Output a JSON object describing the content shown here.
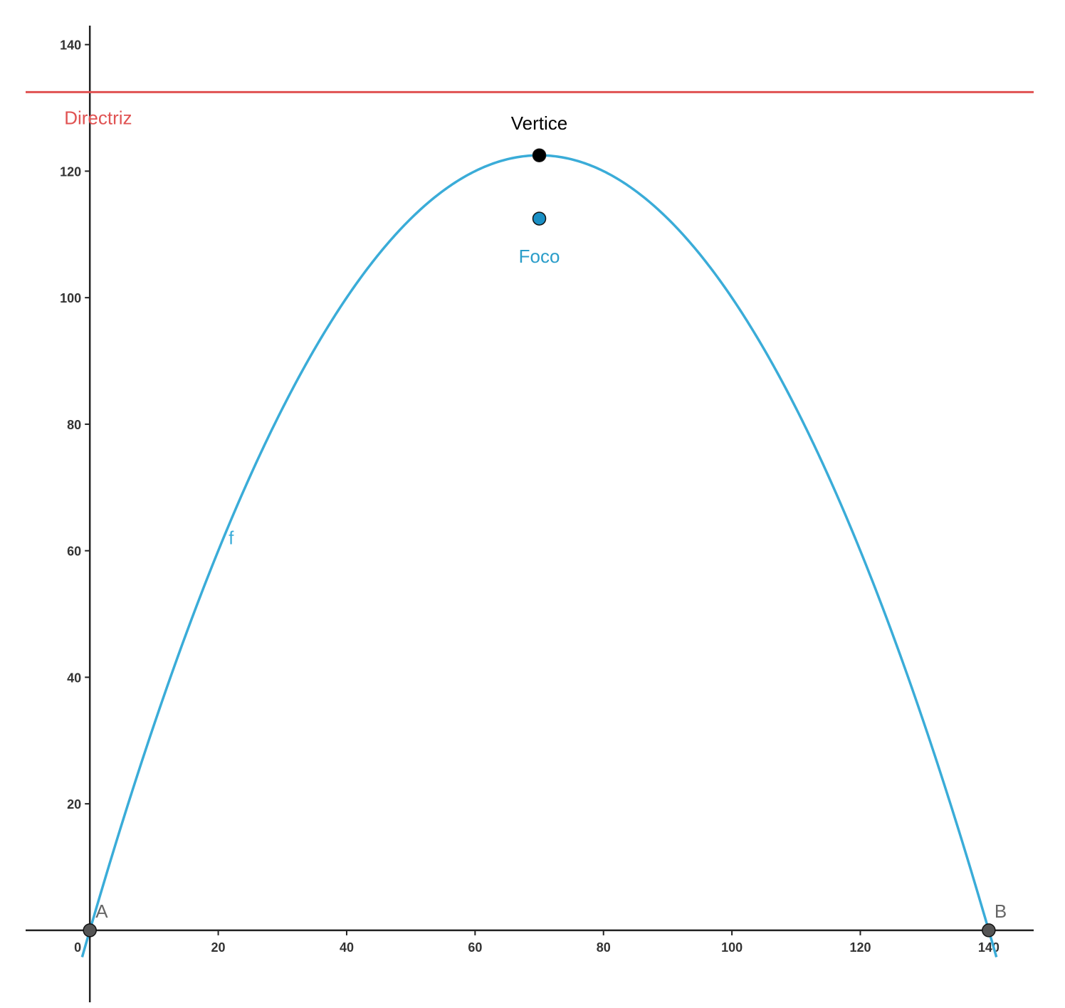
{
  "chart_data": {
    "type": "line",
    "title": "",
    "xlabel": "",
    "ylabel": "",
    "xlim": [
      -10,
      147
    ],
    "ylim": [
      -3.5,
      143
    ],
    "grid": false,
    "xticks": [
      0,
      20,
      40,
      60,
      80,
      100,
      120,
      140
    ],
    "yticks": [
      20,
      40,
      60,
      80,
      100,
      120,
      140
    ],
    "x_tick_labels": [
      "0",
      "20",
      "40",
      "60",
      "80",
      "100",
      "120",
      "140"
    ],
    "y_tick_labels": [
      "20",
      "40",
      "60",
      "80",
      "100",
      "120",
      "140"
    ],
    "series": [
      {
        "name": "f",
        "kind": "parabola",
        "vertex": [
          70,
          122.5
        ],
        "roots": [
          0,
          140
        ],
        "x_range": [
          -1.2,
          141.2
        ],
        "color": "#3aacd8"
      }
    ],
    "directrix": {
      "label": "Directriz",
      "y": 132.5,
      "color": "#e05252"
    },
    "points": [
      {
        "name": "Vertice",
        "label": "Vertice",
        "x": 70,
        "y": 122.5,
        "fill": "#000000",
        "label_color": "#000000"
      },
      {
        "name": "Foco",
        "label": "Foco",
        "x": 70,
        "y": 112.5,
        "fill": "#1a8fc4",
        "label_color": "#2a9dc9"
      },
      {
        "name": "A",
        "label": "A",
        "x": 0,
        "y": 0,
        "fill": "#555555",
        "label_color": "#666666"
      },
      {
        "name": "B",
        "label": "B",
        "x": 140,
        "y": 0,
        "fill": "#555555",
        "label_color": "#666666"
      }
    ]
  }
}
